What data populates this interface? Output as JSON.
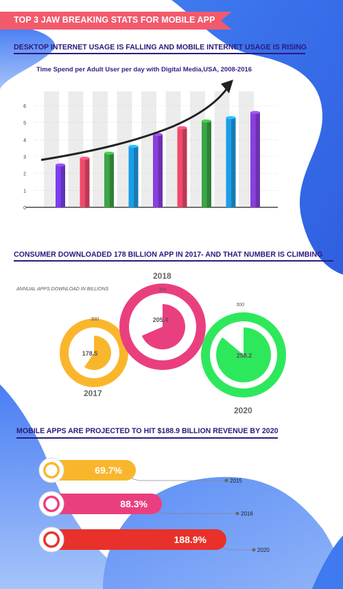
{
  "banner": {
    "title": "TOP 3 JAW BREAKING STATS FOR MOBILE APP"
  },
  "section1": {
    "title": "DESKTOP INTERNET USAGE IS FALLING AND MOBILE INTERNET USAGE IS RISING"
  },
  "section2": {
    "title": "CONSUMER DOWNLOADED 178 BILLION APP IN 2017- AND THAT NUMBER IS CLIMBING",
    "subtitle": "ANNUAL APPS DOWNLOAD IN BILLIONS"
  },
  "section3": {
    "title": "MOBILE APPS ARE PROJECTED TO HIT $188.9 BILLION REVENUE BY 2020"
  },
  "colors": {
    "banner": "#f25a6c",
    "title": "#2b1a7a",
    "blob": "#4d7af0"
  },
  "chart_data": [
    {
      "type": "bar",
      "title": "Time Spend per Adult User per day with Digital Media,USA, 2008-2016",
      "yticks": [
        "0",
        "1",
        "2",
        "3",
        "4",
        "5",
        "6"
      ],
      "ylim": [
        0,
        6
      ],
      "values": [
        2.5,
        2.9,
        3.2,
        3.6,
        4.3,
        4.7,
        5.1,
        5.3,
        5.6
      ],
      "bar_colors": [
        "#7b3ff0",
        "#f0496a",
        "#3aa645",
        "#1c9ee6",
        "#8a3fe0",
        "#f0496a",
        "#3aa645",
        "#1c9ee6",
        "#8a3fe0"
      ],
      "grid": true,
      "trend_arrow": true
    },
    {
      "type": "pie",
      "max_label": "300",
      "items": [
        {
          "year": "2017",
          "value": 178.5,
          "max": 300,
          "color": "#f9b62d"
        },
        {
          "year": "2018",
          "value": 205.4,
          "max": 300,
          "color": "#ea3f7f"
        },
        {
          "year": "2020",
          "value": 258.2,
          "max": 300,
          "color": "#2ee85c"
        }
      ]
    },
    {
      "type": "bar",
      "items": [
        {
          "year": "2015",
          "label": "69.7%",
          "value": 69.7,
          "color": "#f9b62d"
        },
        {
          "year": "2016",
          "label": "88.3%",
          "value": 88.3,
          "color": "#ea3f7f"
        },
        {
          "year": "2020",
          "label": "188.9%",
          "value": 188.9,
          "color": "#e8312b"
        }
      ]
    }
  ]
}
